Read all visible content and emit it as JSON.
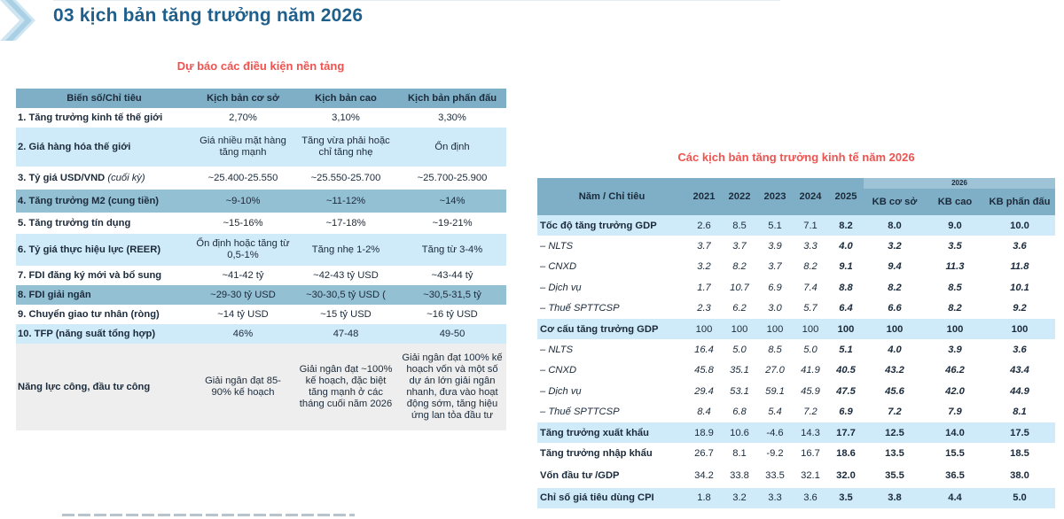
{
  "header": {
    "title": "03 kịch bản tăng trưởng năm 2026"
  },
  "left": {
    "title": "Dự báo các điều kiện nền tảng",
    "columns": [
      "Biến số/Chỉ tiêu",
      "Kịch bản cơ sở",
      "Kịch bản cao",
      "Kịch bản phấn đấu"
    ],
    "rows": [
      {
        "label": "1. Tăng trưởng kinh tế thế giới",
        "note": "",
        "base": "2,70%",
        "high": "3,10%",
        "target": "3,30%"
      },
      {
        "label": "2. Giá hàng hóa thế giới",
        "note": "",
        "base": "Giá nhiều mặt hàng tăng mạnh",
        "high": "Tăng vừa phải hoặc chỉ tăng nhẹ",
        "target": "Ổn định"
      },
      {
        "label": "3. Tỷ giá USD/VND",
        "note": "(cuối kỳ)",
        "base": "~25.400-25.550",
        "high": "~25.550-25.700",
        "target": "~25.700-25.900"
      },
      {
        "label": "4. Tăng trưởng M2 (cung tiền)",
        "note": "",
        "base": "~9-10%",
        "high": "~11-12%",
        "target": "~14%"
      },
      {
        "label": "5. Tăng trưởng tín dụng",
        "note": "",
        "base": "~15-16%",
        "high": "~17-18%",
        "target": "~19-21%"
      },
      {
        "label": "6. Tỷ giá thực hiệu lực (REER)",
        "note": "",
        "base": "Ổn định hoặc tăng từ 0,5-1%",
        "high": "Tăng nhẹ 1-2%",
        "target": "Tăng từ 3-4%"
      },
      {
        "label": "7. FDI đăng ký mới và bổ sung",
        "note": "",
        "base": "~41-42 tỷ",
        "high": "~42-43 tỷ USD",
        "target": "~43-44 tỷ"
      },
      {
        "label": "8. FDI giải ngân",
        "note": "",
        "base": "~29-30 tỷ USD",
        "high": "~30-30,5 tỷ USD (",
        "target": "~30,5-31,5 tỷ"
      },
      {
        "label": "9. Chuyển giao tư nhân (ròng)",
        "note": "",
        "base": "~14 tỷ USD",
        "high": "~15 tỷ USD",
        "target": "~16 tỷ USD"
      },
      {
        "label": "10. TFP (năng suất tổng hợp)",
        "note": "",
        "base": "46%",
        "high": "47-48",
        "target": "49-50"
      },
      {
        "label": "Năng lực công, đầu tư công",
        "note": "",
        "base": "Giải ngân đạt 85-90% kế hoạch",
        "high": "Giải ngân đạt ~100% kế hoạch, đặc biệt tăng mạnh ở các tháng cuối năm 2026",
        "target": "Giải ngân đạt 100% kế hoạch vốn và một số dự án lớn giải ngân nhanh, đưa vào hoạt động sớm, tăng hiệu ứng lan tỏa đầu tư"
      }
    ]
  },
  "right": {
    "title": "Các kịch bản tăng trưởng kinh tế năm 2026",
    "header_label": "Năm / Chỉ tiêu",
    "group_label": "2026",
    "years": [
      "2021",
      "2022",
      "2023",
      "2024",
      "2025"
    ],
    "scenarios": [
      "KB cơ sở",
      "KB cao",
      "KB phấn đấu"
    ],
    "rows": [
      {
        "label": "Tốc độ tăng trưởng GDP",
        "values": [
          "2.6",
          "8.5",
          "5.1",
          "7.1",
          "8.2",
          "8.0",
          "9.0",
          "10.0"
        ]
      },
      {
        "label": "– NLTS",
        "values": [
          "3.7",
          "3.7",
          "3.9",
          "3.3",
          "4.0",
          "3.2",
          "3.5",
          "3.6"
        ]
      },
      {
        "label": "– CNXD",
        "values": [
          "3.2",
          "8.2",
          "3.7",
          "8.2",
          "9.1",
          "9.4",
          "11.3",
          "11.8"
        ]
      },
      {
        "label": "– Dịch vụ",
        "values": [
          "1.7",
          "10.7",
          "6.9",
          "7.4",
          "8.8",
          "8.2",
          "8.5",
          "10.1"
        ]
      },
      {
        "label": "– Thuế SPTTCSP",
        "values": [
          "2.3",
          "6.2",
          "3.0",
          "5.7",
          "6.4",
          "6.6",
          "8.2",
          "9.2"
        ]
      },
      {
        "label": "Cơ cấu tăng trưởng GDP",
        "values": [
          "100",
          "100",
          "100",
          "100",
          "100",
          "100",
          "100",
          "100"
        ]
      },
      {
        "label": "– NLTS",
        "values": [
          "16.4",
          "5.0",
          "8.5",
          "5.0",
          "5.1",
          "4.0",
          "3.9",
          "3.6"
        ]
      },
      {
        "label": "– CNXD",
        "values": [
          "45.8",
          "35.1",
          "27.0",
          "41.9",
          "40.5",
          "43.2",
          "46.2",
          "43.4"
        ]
      },
      {
        "label": "– Dịch vụ",
        "values": [
          "29.4",
          "53.1",
          "59.1",
          "45.9",
          "47.5",
          "45.6",
          "42.0",
          "44.9"
        ]
      },
      {
        "label": "– Thuế SPTTCSP",
        "values": [
          "8.4",
          "6.8",
          "5.4",
          "7.2",
          "6.9",
          "7.2",
          "7.9",
          "8.1"
        ]
      },
      {
        "label": "Tăng trưởng xuất khẩu",
        "values": [
          "18.9",
          "10.6",
          "-4.6",
          "14.3",
          "17.7",
          "12.5",
          "14.0",
          "17.5"
        ]
      },
      {
        "label": "Tăng trưởng nhập khẩu",
        "values": [
          "26.7",
          "8.1",
          "-9.2",
          "16.7",
          "18.6",
          "13.5",
          "15.5",
          "18.5"
        ]
      },
      {
        "label": "Vốn đầu tư /GDP",
        "values": [
          "34.2",
          "33.8",
          "33.5",
          "32.1",
          "32.0",
          "35.5",
          "36.5",
          "38.0"
        ]
      },
      {
        "label": "Chỉ số giá tiêu dùng CPI",
        "values": [
          "1.8",
          "3.2",
          "3.3",
          "3.6",
          "3.5",
          "3.8",
          "4.4",
          "5.0"
        ]
      }
    ]
  }
}
